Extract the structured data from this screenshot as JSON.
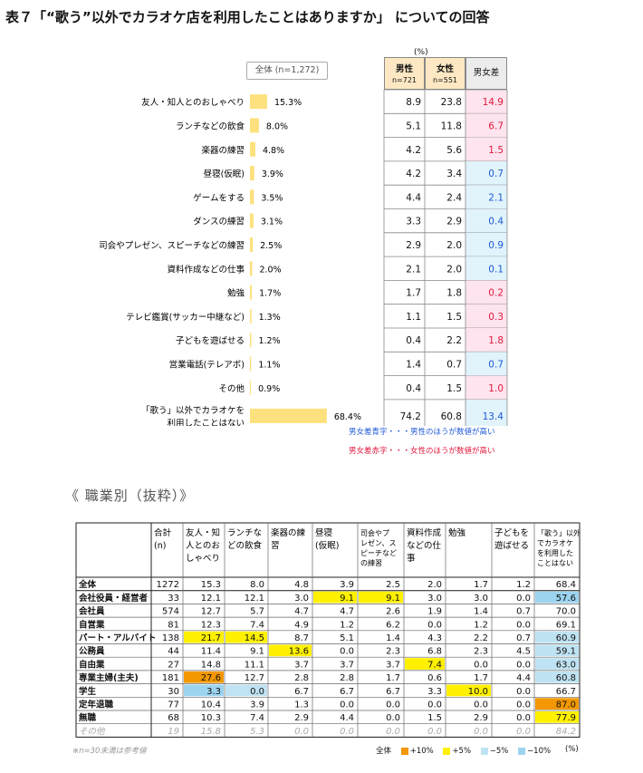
{
  "title": "表７「“歌う”以外でカラオケ店を利用したことはありますか」 についての回答",
  "percent_note": "(%)",
  "all_label": "全体 (n=1,272)",
  "header": {
    "male": "男性",
    "male_n": "n=721",
    "female": "女性",
    "female_n": "n=551",
    "diff": "男女差"
  },
  "legend_blue": "男女差青字・・・男性のほうが数値が高い",
  "legend_red": "男女差赤字・・・女性のほうが数値が高い",
  "colors": {
    "bar": "#fde17e",
    "blue_text": "#1f5ad6",
    "red_text": "#e0183c",
    "diff_blue_bg": "#e1f3fb",
    "diff_red_bg": "#fde4ee",
    "plus10": "#f39800",
    "plus5": "#fff100",
    "minus5": "#bfe3f2",
    "minus10": "#9cd4f0"
  },
  "chart_data": [
    {
      "type": "bar",
      "categories": [
        "友人・知人とのおしゃべり",
        "ランチなどの飲食",
        "楽器の練習",
        "昼寝(仮眠)",
        "ゲームをする",
        "ダンスの練習",
        "司会やプレゼン、スピーチなどの練習",
        "資料作成などの仕事",
        "勉強",
        "テレビ鑑賞(サッカー中継など)",
        "子どもを遊ばせる",
        "営業電話(テレアポ)",
        "その他",
        "「歌う」以外でカラオケを|利用したことはない"
      ],
      "values": [
        15.3,
        8.0,
        4.8,
        3.9,
        3.5,
        3.1,
        2.5,
        2.0,
        1.7,
        1.3,
        1.2,
        1.1,
        0.9,
        68.4
      ],
      "value_labels": [
        "15.3%",
        "8.0%",
        "4.8%",
        "3.9%",
        "3.5%",
        "3.1%",
        "2.5%",
        "2.0%",
        "1.7%",
        "1.3%",
        "1.2%",
        "1.1%",
        "0.9%",
        "68.4%"
      ],
      "series": [
        {
          "name": "男性",
          "values": [
            "8.9",
            "5.1",
            "4.2",
            "4.2",
            "4.4",
            "3.3",
            "2.9",
            "2.1",
            "1.7",
            "1.1",
            "0.4",
            "1.4",
            "0.4",
            "74.2"
          ]
        },
        {
          "name": "女性",
          "values": [
            "23.8",
            "11.8",
            "5.6",
            "3.4",
            "2.4",
            "2.9",
            "2.0",
            "2.0",
            "1.8",
            "1.5",
            "2.2",
            "0.7",
            "1.5",
            "60.8"
          ]
        },
        {
          "name": "男女差",
          "values": [
            "14.9",
            "6.7",
            "1.5",
            "0.7",
            "2.1",
            "0.4",
            "0.9",
            "0.1",
            "0.2",
            "0.3",
            "1.8",
            "0.7",
            "1.0",
            "13.4"
          ],
          "higher": [
            "f",
            "f",
            "f",
            "m",
            "m",
            "m",
            "m",
            "m",
            "f",
            "f",
            "f",
            "m",
            "f",
            "m"
          ]
        }
      ]
    },
    {
      "type": "table",
      "title": "《 職業別（抜粋）》",
      "columns": [
        "合計|(n)",
        "友人・知|人とのお|しゃべり",
        "ランチな|どの飲食",
        "楽器の練|習",
        "昼寝|(仮眠)",
        "司会やプ|レゼン、ス|ピーチなど|の練習",
        "資料作成|などの仕|事",
        "勉強",
        "子どもを|遊ばせる",
        "「歌う」以外|でカラオケ|を利用した|ことはない"
      ],
      "rows": [
        {
          "label": "全体",
          "values": [
            "1272",
            "15.3",
            "8.0",
            "4.8",
            "3.9",
            "2.5",
            "2.0",
            "1.7",
            "1.2",
            "68.4"
          ],
          "hl": [
            "",
            "",
            "",
            "",
            "",
            "",
            "",
            "",
            "",
            ""
          ]
        },
        {
          "label": "会社役員・経営者",
          "values": [
            "33",
            "12.1",
            "12.1",
            "3.0",
            "9.1",
            "9.1",
            "3.0",
            "3.0",
            "0.0",
            "57.6"
          ],
          "hl": [
            "",
            "",
            "",
            "",
            "p5",
            "p5",
            "",
            "",
            "",
            "m10"
          ]
        },
        {
          "label": "会社員",
          "values": [
            "574",
            "12.7",
            "5.7",
            "4.7",
            "4.7",
            "2.6",
            "1.9",
            "1.4",
            "0.7",
            "70.0"
          ],
          "hl": [
            "",
            "",
            "",
            "",
            "",
            "",
            "",
            "",
            "",
            ""
          ]
        },
        {
          "label": "自営業",
          "values": [
            "81",
            "12.3",
            "7.4",
            "4.9",
            "1.2",
            "6.2",
            "0.0",
            "1.2",
            "0.0",
            "69.1"
          ],
          "hl": [
            "",
            "",
            "",
            "",
            "",
            "",
            "",
            "",
            "",
            ""
          ]
        },
        {
          "label": "パート・アルバイト",
          "values": [
            "138",
            "21.7",
            "14.5",
            "8.7",
            "5.1",
            "1.4",
            "4.3",
            "2.2",
            "0.7",
            "60.9"
          ],
          "hl": [
            "",
            "p5",
            "p5",
            "",
            "",
            "",
            "",
            "",
            "",
            "m5"
          ]
        },
        {
          "label": "公務員",
          "values": [
            "44",
            "11.4",
            "9.1",
            "13.6",
            "0.0",
            "2.3",
            "6.8",
            "2.3",
            "4.5",
            "59.1"
          ],
          "hl": [
            "",
            "",
            "",
            "p5",
            "",
            "",
            "",
            "",
            "",
            "m5"
          ]
        },
        {
          "label": "自由業",
          "values": [
            "27",
            "14.8",
            "11.1",
            "3.7",
            "3.7",
            "3.7",
            "7.4",
            "0.0",
            "0.0",
            "63.0"
          ],
          "hl": [
            "",
            "",
            "",
            "",
            "",
            "",
            "p5",
            "",
            "",
            "m5"
          ]
        },
        {
          "label": "専業主婦(主夫)",
          "values": [
            "181",
            "27.6",
            "12.7",
            "2.8",
            "2.8",
            "1.7",
            "0.6",
            "1.7",
            "4.4",
            "60.8"
          ],
          "hl": [
            "",
            "p10",
            "",
            "",
            "",
            "",
            "",
            "",
            "",
            "m5"
          ]
        },
        {
          "label": "学生",
          "values": [
            "30",
            "3.3",
            "0.0",
            "6.7",
            "6.7",
            "6.7",
            "3.3",
            "10.0",
            "0.0",
            "66.7"
          ],
          "hl": [
            "",
            "m10",
            "m5",
            "",
            "",
            "",
            "",
            "p5",
            "",
            ""
          ]
        },
        {
          "label": "定年退職",
          "values": [
            "77",
            "10.4",
            "3.9",
            "1.3",
            "0.0",
            "0.0",
            "0.0",
            "0.0",
            "0.0",
            "87.0"
          ],
          "hl": [
            "",
            "",
            "",
            "",
            "",
            "",
            "",
            "",
            "",
            "p10"
          ]
        },
        {
          "label": "無職",
          "values": [
            "68",
            "10.3",
            "7.4",
            "2.9",
            "4.4",
            "0.0",
            "1.5",
            "2.9",
            "0.0",
            "77.9"
          ],
          "hl": [
            "",
            "",
            "",
            "",
            "",
            "",
            "",
            "",
            "",
            "p5"
          ]
        },
        {
          "label": "その他",
          "values": [
            "19",
            "15.8",
            "5.3",
            "0.0",
            "0.0",
            "0.0",
            "0.0",
            "0.0",
            "0.0",
            "84.2"
          ],
          "hl": [
            "",
            "",
            "",
            "",
            "",
            "",
            "",
            "",
            "",
            ""
          ],
          "muted": true
        }
      ]
    }
  ],
  "section2_title": "《 職業別（抜粋）》",
  "footnote": "※n=30未満は参考値",
  "legend2": {
    "label": "全体",
    "items": [
      "+10%",
      "+5%",
      "−5%",
      "−10%"
    ],
    "unit": "(%)"
  }
}
